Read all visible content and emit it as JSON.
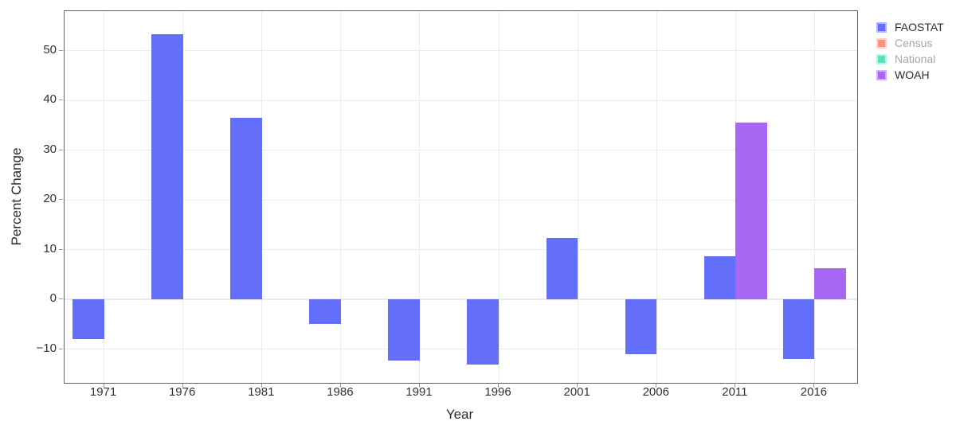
{
  "chart_data": {
    "type": "bar",
    "title": "",
    "xlabel": "Year",
    "ylabel": "Percent Change",
    "x_range": [
      1968.5,
      2018.7
    ],
    "y_range": [
      -16.8,
      58.0
    ],
    "x_ticks": [
      1971,
      1976,
      1981,
      1986,
      1991,
      1996,
      2001,
      2006,
      2011,
      2016
    ],
    "y_ticks": [
      -10,
      0,
      10,
      20,
      30,
      40,
      50
    ],
    "bar_width_years": 2,
    "grid": true,
    "legend_position": "right-outside",
    "series": [
      {
        "name": "FAOSTAT",
        "color": "#636efa",
        "visible": true,
        "x": [
          1970,
          1975,
          1980,
          1985,
          1990,
          1995,
          2000,
          2005,
          2010,
          2015
        ],
        "y": [
          -8.0,
          53.4,
          36.6,
          -4.9,
          -12.3,
          -13.1,
          12.4,
          -11.0,
          8.7,
          -12.0
        ]
      },
      {
        "name": "Census",
        "color": "#ef553b",
        "visible": false,
        "x": [],
        "y": []
      },
      {
        "name": "National",
        "color": "#00cc96",
        "visible": false,
        "x": [],
        "y": []
      },
      {
        "name": "WOAH",
        "color": "#a866f2",
        "visible": true,
        "x": [
          2012,
          2017
        ],
        "y": [
          35.5,
          6.3
        ]
      }
    ],
    "colors": {
      "grid": "#ebebeb",
      "zero_line": "#e6e8f5",
      "frame": "#63646a",
      "tick": "#9b9b9b",
      "legend_text_active": "#2b2f36",
      "legend_text_muted": "#a7a7a7"
    }
  },
  "legend": {
    "items": [
      {
        "label": "FAOSTAT",
        "color": "#636efa",
        "muted": false
      },
      {
        "label": "Census",
        "color": "#ef553b",
        "muted": true
      },
      {
        "label": "National",
        "color": "#00cc96",
        "muted": true
      },
      {
        "label": "WOAH",
        "color": "#a866f2",
        "muted": false
      }
    ]
  }
}
